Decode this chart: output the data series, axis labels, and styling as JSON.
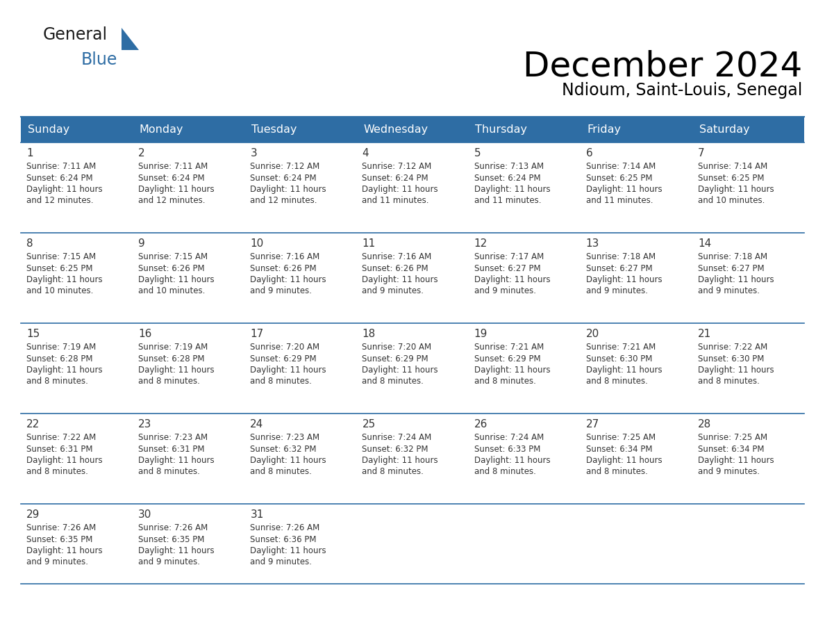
{
  "title": "December 2024",
  "subtitle": "Ndioum, Saint-Louis, Senegal",
  "header_bg_color": "#2e6da4",
  "header_text_color": "#ffffff",
  "cell_bg_color": "#ffffff",
  "row_border_color": "#2e6da4",
  "text_color": "#333333",
  "days_of_week": [
    "Sunday",
    "Monday",
    "Tuesday",
    "Wednesday",
    "Thursday",
    "Friday",
    "Saturday"
  ],
  "calendar": [
    [
      {
        "day": 1,
        "sunrise": "7:11 AM",
        "sunset": "6:24 PM",
        "daylight_line1": "Daylight: 11 hours",
        "daylight_line2": "and 12 minutes."
      },
      {
        "day": 2,
        "sunrise": "7:11 AM",
        "sunset": "6:24 PM",
        "daylight_line1": "Daylight: 11 hours",
        "daylight_line2": "and 12 minutes."
      },
      {
        "day": 3,
        "sunrise": "7:12 AM",
        "sunset": "6:24 PM",
        "daylight_line1": "Daylight: 11 hours",
        "daylight_line2": "and 12 minutes."
      },
      {
        "day": 4,
        "sunrise": "7:12 AM",
        "sunset": "6:24 PM",
        "daylight_line1": "Daylight: 11 hours",
        "daylight_line2": "and 11 minutes."
      },
      {
        "day": 5,
        "sunrise": "7:13 AM",
        "sunset": "6:24 PM",
        "daylight_line1": "Daylight: 11 hours",
        "daylight_line2": "and 11 minutes."
      },
      {
        "day": 6,
        "sunrise": "7:14 AM",
        "sunset": "6:25 PM",
        "daylight_line1": "Daylight: 11 hours",
        "daylight_line2": "and 11 minutes."
      },
      {
        "day": 7,
        "sunrise": "7:14 AM",
        "sunset": "6:25 PM",
        "daylight_line1": "Daylight: 11 hours",
        "daylight_line2": "and 10 minutes."
      }
    ],
    [
      {
        "day": 8,
        "sunrise": "7:15 AM",
        "sunset": "6:25 PM",
        "daylight_line1": "Daylight: 11 hours",
        "daylight_line2": "and 10 minutes."
      },
      {
        "day": 9,
        "sunrise": "7:15 AM",
        "sunset": "6:26 PM",
        "daylight_line1": "Daylight: 11 hours",
        "daylight_line2": "and 10 minutes."
      },
      {
        "day": 10,
        "sunrise": "7:16 AM",
        "sunset": "6:26 PM",
        "daylight_line1": "Daylight: 11 hours",
        "daylight_line2": "and 9 minutes."
      },
      {
        "day": 11,
        "sunrise": "7:16 AM",
        "sunset": "6:26 PM",
        "daylight_line1": "Daylight: 11 hours",
        "daylight_line2": "and 9 minutes."
      },
      {
        "day": 12,
        "sunrise": "7:17 AM",
        "sunset": "6:27 PM",
        "daylight_line1": "Daylight: 11 hours",
        "daylight_line2": "and 9 minutes."
      },
      {
        "day": 13,
        "sunrise": "7:18 AM",
        "sunset": "6:27 PM",
        "daylight_line1": "Daylight: 11 hours",
        "daylight_line2": "and 9 minutes."
      },
      {
        "day": 14,
        "sunrise": "7:18 AM",
        "sunset": "6:27 PM",
        "daylight_line1": "Daylight: 11 hours",
        "daylight_line2": "and 9 minutes."
      }
    ],
    [
      {
        "day": 15,
        "sunrise": "7:19 AM",
        "sunset": "6:28 PM",
        "daylight_line1": "Daylight: 11 hours",
        "daylight_line2": "and 8 minutes."
      },
      {
        "day": 16,
        "sunrise": "7:19 AM",
        "sunset": "6:28 PM",
        "daylight_line1": "Daylight: 11 hours",
        "daylight_line2": "and 8 minutes."
      },
      {
        "day": 17,
        "sunrise": "7:20 AM",
        "sunset": "6:29 PM",
        "daylight_line1": "Daylight: 11 hours",
        "daylight_line2": "and 8 minutes."
      },
      {
        "day": 18,
        "sunrise": "7:20 AM",
        "sunset": "6:29 PM",
        "daylight_line1": "Daylight: 11 hours",
        "daylight_line2": "and 8 minutes."
      },
      {
        "day": 19,
        "sunrise": "7:21 AM",
        "sunset": "6:29 PM",
        "daylight_line1": "Daylight: 11 hours",
        "daylight_line2": "and 8 minutes."
      },
      {
        "day": 20,
        "sunrise": "7:21 AM",
        "sunset": "6:30 PM",
        "daylight_line1": "Daylight: 11 hours",
        "daylight_line2": "and 8 minutes."
      },
      {
        "day": 21,
        "sunrise": "7:22 AM",
        "sunset": "6:30 PM",
        "daylight_line1": "Daylight: 11 hours",
        "daylight_line2": "and 8 minutes."
      }
    ],
    [
      {
        "day": 22,
        "sunrise": "7:22 AM",
        "sunset": "6:31 PM",
        "daylight_line1": "Daylight: 11 hours",
        "daylight_line2": "and 8 minutes."
      },
      {
        "day": 23,
        "sunrise": "7:23 AM",
        "sunset": "6:31 PM",
        "daylight_line1": "Daylight: 11 hours",
        "daylight_line2": "and 8 minutes."
      },
      {
        "day": 24,
        "sunrise": "7:23 AM",
        "sunset": "6:32 PM",
        "daylight_line1": "Daylight: 11 hours",
        "daylight_line2": "and 8 minutes."
      },
      {
        "day": 25,
        "sunrise": "7:24 AM",
        "sunset": "6:32 PM",
        "daylight_line1": "Daylight: 11 hours",
        "daylight_line2": "and 8 minutes."
      },
      {
        "day": 26,
        "sunrise": "7:24 AM",
        "sunset": "6:33 PM",
        "daylight_line1": "Daylight: 11 hours",
        "daylight_line2": "and 8 minutes."
      },
      {
        "day": 27,
        "sunrise": "7:25 AM",
        "sunset": "6:34 PM",
        "daylight_line1": "Daylight: 11 hours",
        "daylight_line2": "and 8 minutes."
      },
      {
        "day": 28,
        "sunrise": "7:25 AM",
        "sunset": "6:34 PM",
        "daylight_line1": "Daylight: 11 hours",
        "daylight_line2": "and 9 minutes."
      }
    ],
    [
      {
        "day": 29,
        "sunrise": "7:26 AM",
        "sunset": "6:35 PM",
        "daylight_line1": "Daylight: 11 hours",
        "daylight_line2": "and 9 minutes."
      },
      {
        "day": 30,
        "sunrise": "7:26 AM",
        "sunset": "6:35 PM",
        "daylight_line1": "Daylight: 11 hours",
        "daylight_line2": "and 9 minutes."
      },
      {
        "day": 31,
        "sunrise": "7:26 AM",
        "sunset": "6:36 PM",
        "daylight_line1": "Daylight: 11 hours",
        "daylight_line2": "and 9 minutes."
      },
      null,
      null,
      null,
      null
    ]
  ],
  "logo_color_general": "#1a1a1a",
  "logo_color_blue": "#2e6da4",
  "logo_triangle_color": "#2e6da4"
}
